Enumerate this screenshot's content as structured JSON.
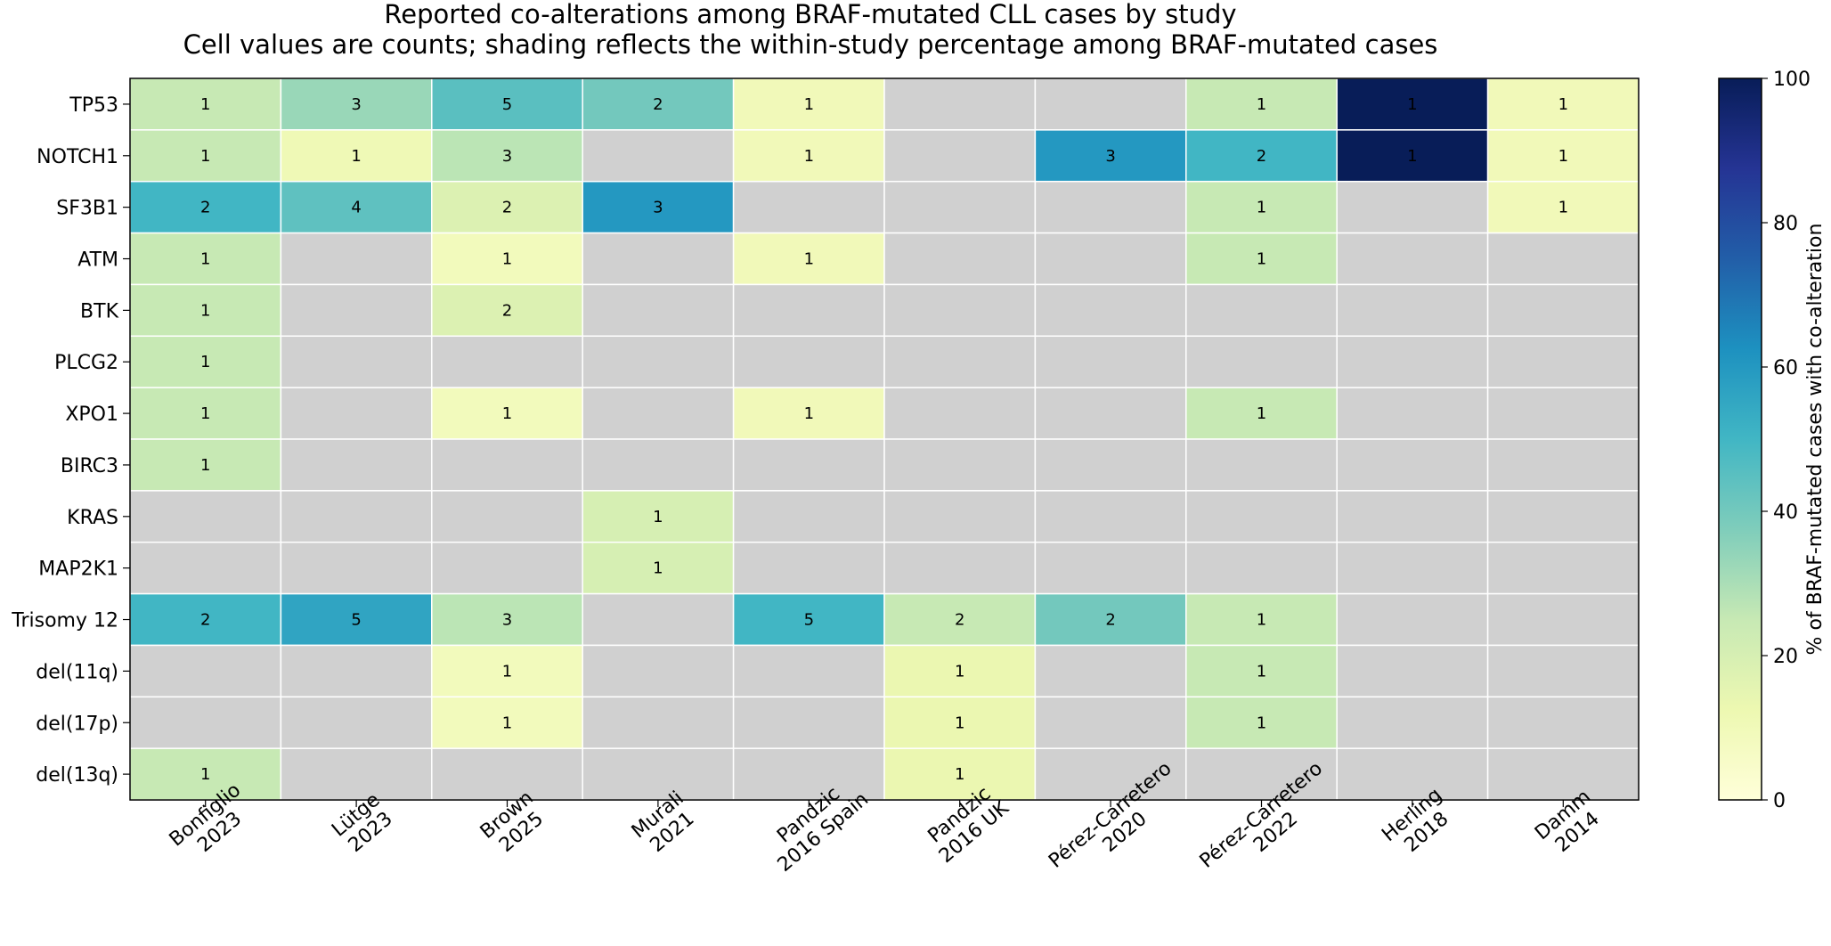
{
  "chart_data": {
    "type": "heatmap",
    "title": "Reported co-alterations among BRAF-mutated CLL cases by study",
    "subtitle": "Cell values are counts; shading reflects the within-study percentage among BRAF-mutated cases",
    "rows": [
      "TP53",
      "NOTCH1",
      "SF3B1",
      "ATM",
      "BTK",
      "PLCG2",
      "XPO1",
      "BIRC3",
      "KRAS",
      "MAP2K1",
      "Trisomy 12",
      "del(11q)",
      "del(17p)",
      "del(13q)"
    ],
    "columns": [
      [
        "Bonfiglio",
        "2023"
      ],
      [
        "Lütge",
        "2023"
      ],
      [
        "Brown",
        "2025"
      ],
      [
        "Murali",
        "2021"
      ],
      [
        "Pandzic",
        "2016 Spain"
      ],
      [
        "Pandzic",
        "2016 UK"
      ],
      [
        "Pérez-Carretero",
        "2020"
      ],
      [
        "Pérez-Carretero",
        "2022"
      ],
      [
        "Herling",
        "2018"
      ],
      [
        "Damm",
        "2014"
      ]
    ],
    "counts": [
      [
        1,
        3,
        5,
        2,
        1,
        null,
        null,
        1,
        1,
        1
      ],
      [
        1,
        1,
        3,
        null,
        1,
        null,
        3,
        2,
        1,
        1
      ],
      [
        2,
        4,
        2,
        3,
        null,
        null,
        null,
        1,
        null,
        1
      ],
      [
        1,
        null,
        1,
        null,
        1,
        null,
        null,
        1,
        null,
        null
      ],
      [
        1,
        null,
        2,
        null,
        null,
        null,
        null,
        null,
        null,
        null
      ],
      [
        1,
        null,
        null,
        null,
        null,
        null,
        null,
        null,
        null,
        null
      ],
      [
        1,
        null,
        1,
        null,
        1,
        null,
        null,
        1,
        null,
        null
      ],
      [
        1,
        null,
        null,
        null,
        null,
        null,
        null,
        null,
        null,
        null
      ],
      [
        null,
        null,
        null,
        1,
        null,
        null,
        null,
        null,
        null,
        null
      ],
      [
        null,
        null,
        null,
        1,
        null,
        null,
        null,
        null,
        null,
        null
      ],
      [
        2,
        5,
        3,
        null,
        5,
        2,
        2,
        1,
        null,
        null
      ],
      [
        null,
        null,
        1,
        null,
        null,
        1,
        null,
        1,
        null,
        null
      ],
      [
        null,
        null,
        1,
        null,
        null,
        1,
        null,
        1,
        null,
        null
      ],
      [
        1,
        null,
        null,
        null,
        null,
        1,
        null,
        null,
        null,
        null
      ]
    ],
    "percentages": [
      [
        25,
        33,
        45,
        40,
        10,
        null,
        null,
        25,
        100,
        10
      ],
      [
        25,
        11,
        27,
        null,
        10,
        null,
        60,
        50,
        100,
        10
      ],
      [
        50,
        44,
        18,
        60,
        null,
        null,
        null,
        25,
        null,
        10
      ],
      [
        25,
        null,
        9,
        null,
        10,
        null,
        null,
        25,
        null,
        null
      ],
      [
        25,
        null,
        18,
        null,
        null,
        null,
        null,
        null,
        null,
        null
      ],
      [
        25,
        null,
        null,
        null,
        null,
        null,
        null,
        null,
        null,
        null
      ],
      [
        25,
        null,
        9,
        null,
        10,
        null,
        null,
        25,
        null,
        null
      ],
      [
        25,
        null,
        null,
        null,
        null,
        null,
        null,
        null,
        null,
        null
      ],
      [
        null,
        null,
        null,
        20,
        null,
        null,
        null,
        null,
        null,
        null
      ],
      [
        null,
        null,
        null,
        20,
        null,
        null,
        null,
        null,
        null,
        null
      ],
      [
        50,
        56,
        27,
        null,
        50,
        25,
        40,
        25,
        null,
        null
      ],
      [
        null,
        null,
        9,
        null,
        null,
        13,
        null,
        25,
        null,
        null
      ],
      [
        null,
        null,
        9,
        null,
        null,
        13,
        null,
        25,
        null,
        null
      ],
      [
        25,
        null,
        null,
        null,
        null,
        13,
        null,
        null,
        null,
        null
      ]
    ],
    "missing_color": "#d0d0d0",
    "colormap": "YlGnBu",
    "colorbar": {
      "label": "% of BRAF-mutated cases with co-alteration",
      "range": [
        0,
        100
      ],
      "ticks": [
        0,
        20,
        40,
        60,
        80,
        100
      ]
    }
  }
}
